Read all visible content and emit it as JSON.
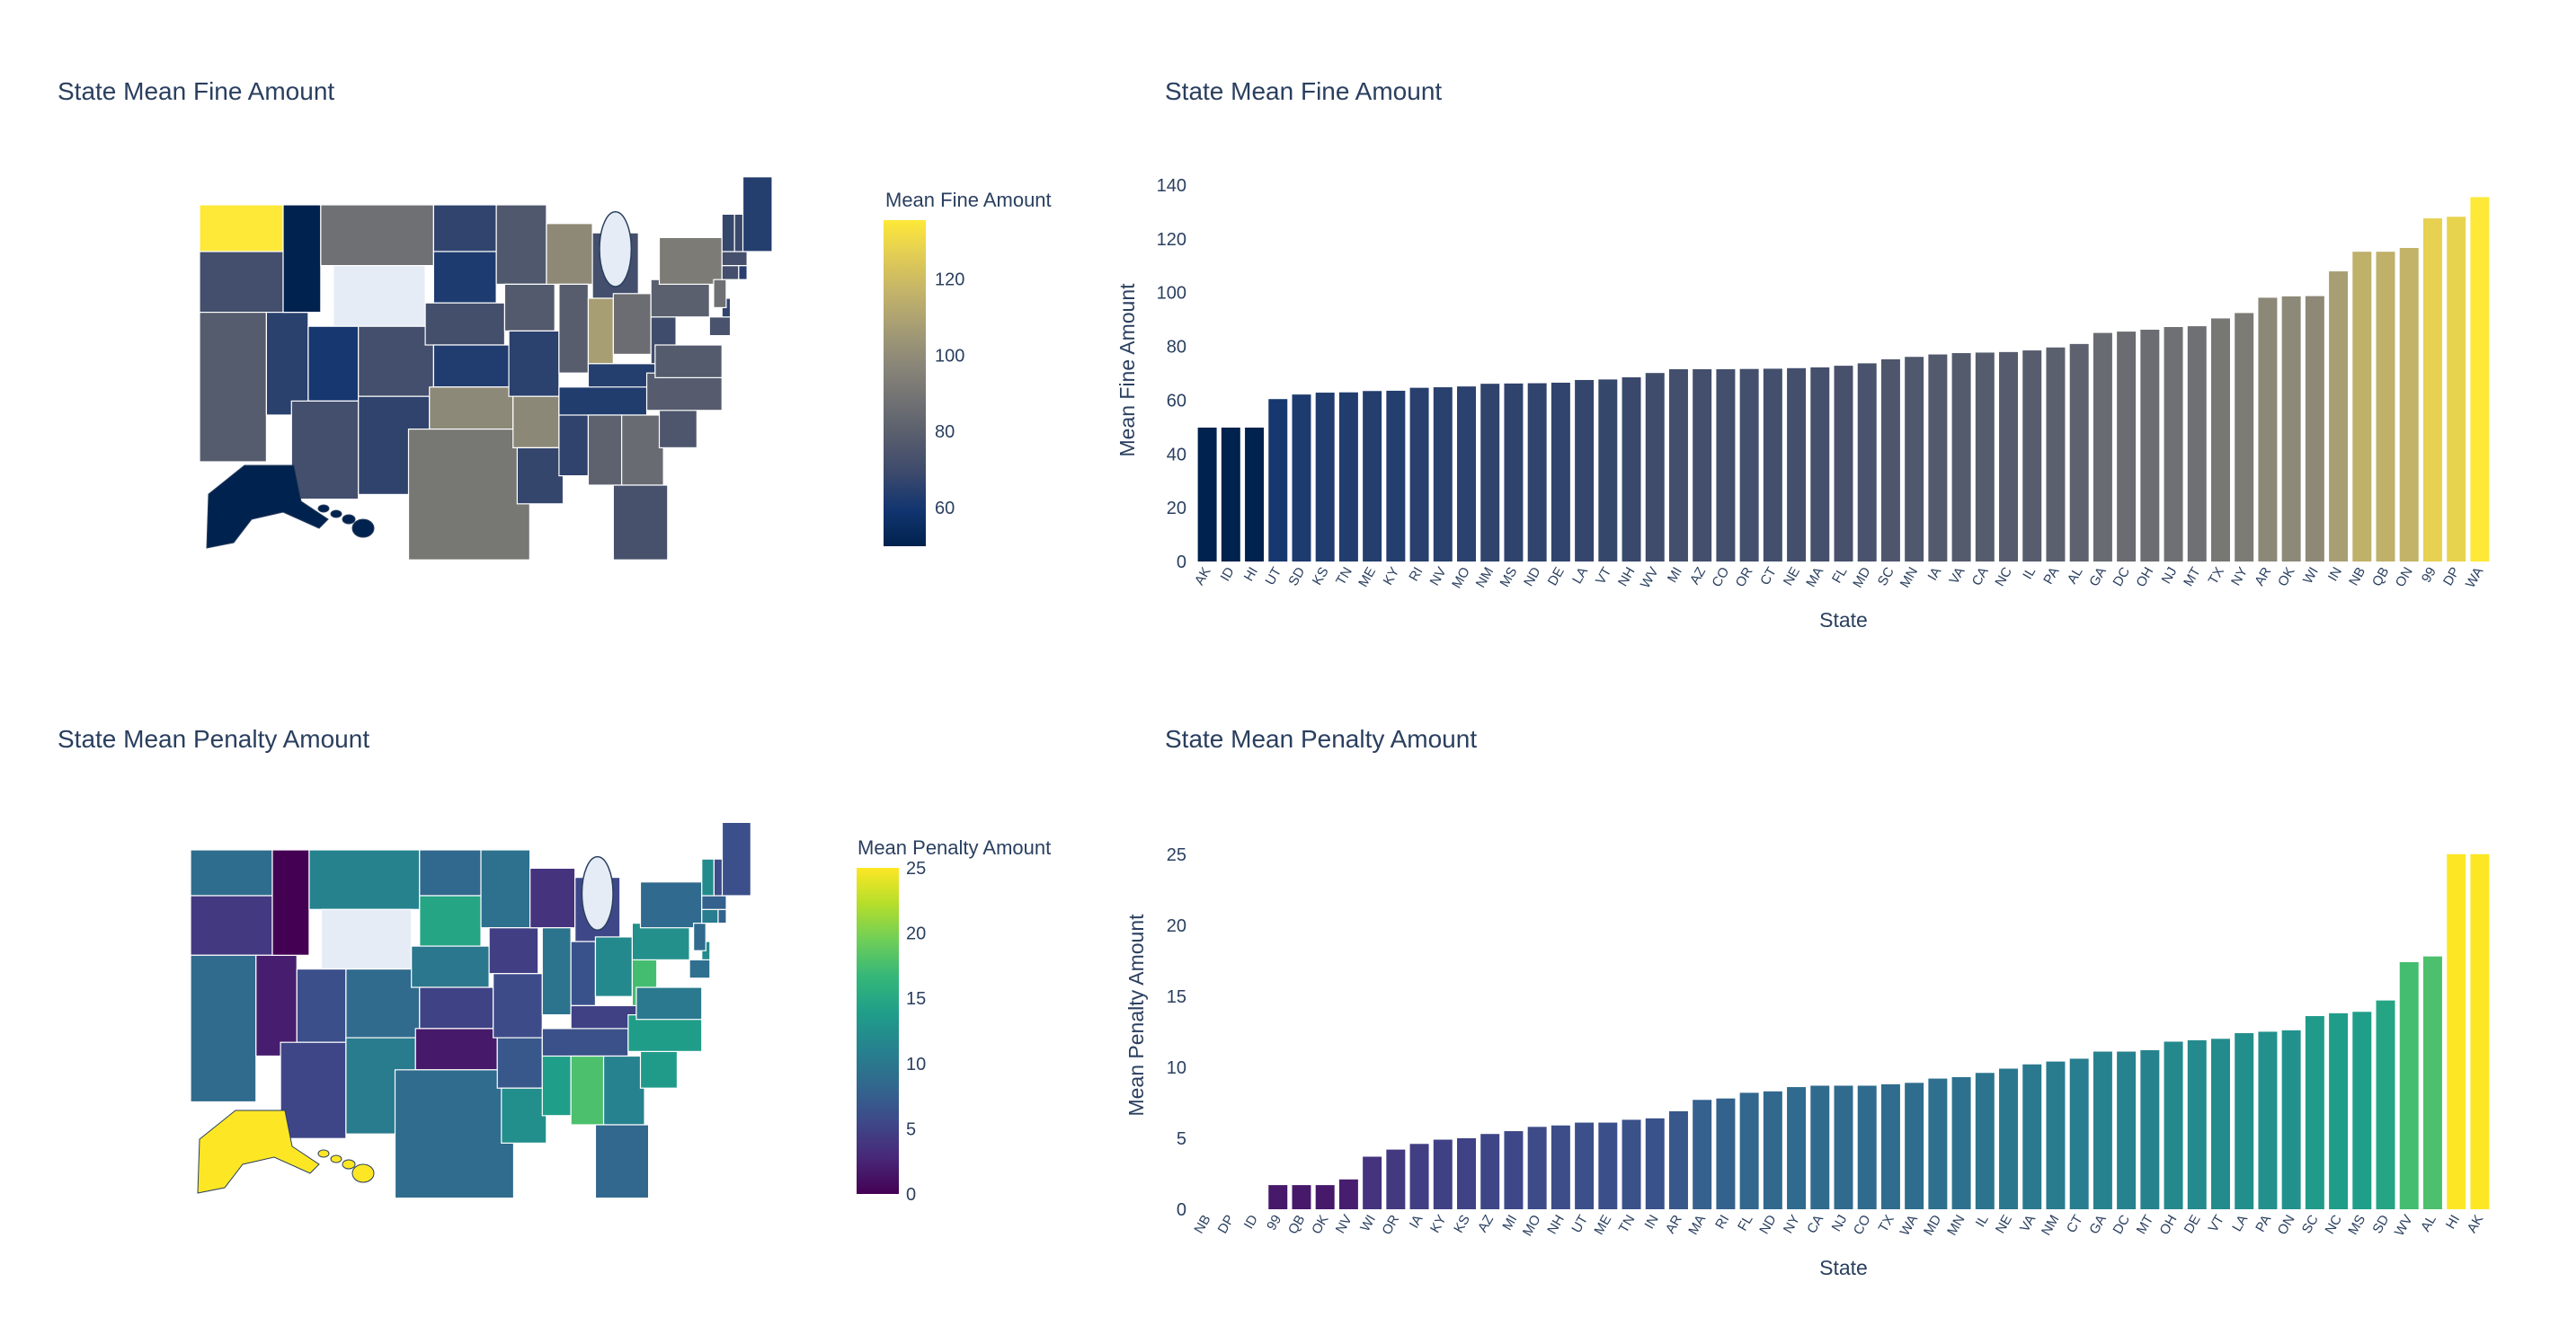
{
  "colors": {
    "cividis": [
      "#00224e",
      "#123570",
      "#3b496c",
      "#575d6d",
      "#707173",
      "#8a8678",
      "#a59c74",
      "#c3b369",
      "#e1cc55",
      "#fee838"
    ],
    "viridis": [
      "#440154",
      "#482878",
      "#3e4989",
      "#31688e",
      "#26828e",
      "#1f9e89",
      "#35b779",
      "#6ece58",
      "#b5de2b",
      "#fde725"
    ],
    "missing": "#e5ecf6",
    "grid": "#ffffff",
    "text": "#2a3f5f",
    "great_lakes": "#e5ecf6"
  },
  "chart_data": [
    {
      "id": "fine-map",
      "type": "choropleth",
      "title": "State Mean Fine Amount",
      "colorbar_title": "Mean Fine Amount",
      "colorscale": "cividis",
      "range": [
        49.8,
        135.5
      ],
      "colorbar_ticks": [
        60,
        80,
        100,
        120
      ],
      "missing_states": [
        "WY"
      ],
      "values_from": "fine-bar"
    },
    {
      "id": "fine-bar",
      "type": "bar",
      "title": "State Mean Fine Amount",
      "xlabel": "State",
      "ylabel": "Mean Fine Amount",
      "ylim": [
        0,
        142
      ],
      "yticks": [
        0,
        20,
        40,
        60,
        80,
        100,
        120,
        140
      ],
      "colorscale": "cividis",
      "categories": [
        "AK",
        "ID",
        "HI",
        "UT",
        "SD",
        "KS",
        "TN",
        "ME",
        "KY",
        "RI",
        "NV",
        "MO",
        "NM",
        "MS",
        "ND",
        "DE",
        "LA",
        "VT",
        "NH",
        "WV",
        "MI",
        "AZ",
        "CO",
        "OR",
        "CT",
        "NE",
        "MA",
        "FL",
        "MD",
        "SC",
        "MN",
        "IA",
        "VA",
        "CA",
        "NC",
        "IL",
        "PA",
        "AL",
        "GA",
        "DC",
        "OH",
        "NJ",
        "MT",
        "TX",
        "NY",
        "AR",
        "OK",
        "WI",
        "IN",
        "NB",
        "QB",
        "ON",
        "99",
        "DP",
        "WA"
      ],
      "values": [
        49.8,
        49.8,
        49.8,
        60.4,
        62.1,
        62.8,
        62.9,
        63.4,
        63.5,
        64.6,
        64.8,
        65.1,
        66.1,
        66.2,
        66.3,
        66.5,
        67.5,
        67.7,
        68.5,
        70.1,
        71.5,
        71.5,
        71.5,
        71.6,
        71.7,
        71.9,
        72.2,
        72.8,
        73.7,
        75.2,
        76.1,
        77.0,
        77.5,
        77.7,
        77.9,
        78.5,
        79.6,
        80.9,
        85.0,
        85.5,
        86.2,
        87.2,
        87.5,
        90.4,
        92.4,
        98.1,
        98.6,
        98.7,
        107.9,
        115.2,
        115.2,
        116.6,
        127.6,
        128.2,
        135.5
      ]
    },
    {
      "id": "penalty-map",
      "type": "choropleth",
      "title": "State Mean Penalty Amount",
      "colorbar_title": "Mean Penalty Amount",
      "colorscale": "viridis",
      "range": [
        0,
        25
      ],
      "colorbar_ticks": [
        0,
        5,
        10,
        15,
        20,
        25
      ],
      "missing_states": [
        "WY"
      ],
      "values_from": "penalty-bar"
    },
    {
      "id": "penalty-bar",
      "type": "bar",
      "title": "State Mean Penalty Amount",
      "xlabel": "State",
      "ylabel": "Mean Penalty Amount",
      "ylim": [
        0,
        26
      ],
      "yticks": [
        0,
        5,
        10,
        15,
        20,
        25
      ],
      "colorscale": "viridis",
      "categories": [
        "NB",
        "DP",
        "ID",
        "99",
        "QB",
        "OK",
        "NV",
        "WI",
        "OR",
        "IA",
        "KY",
        "KS",
        "AZ",
        "MI",
        "MO",
        "NH",
        "UT",
        "ME",
        "TN",
        "IN",
        "AR",
        "MA",
        "RI",
        "FL",
        "ND",
        "NY",
        "CA",
        "NJ",
        "CO",
        "TX",
        "WA",
        "MD",
        "MN",
        "IL",
        "NE",
        "VA",
        "NM",
        "CT",
        "GA",
        "DC",
        "MT",
        "OH",
        "DE",
        "VT",
        "LA",
        "PA",
        "ON",
        "SC",
        "NC",
        "MS",
        "SD",
        "WV",
        "AL",
        "HI",
        "AK"
      ],
      "values": [
        0,
        0,
        0,
        1.7,
        1.7,
        1.7,
        2.1,
        3.7,
        4.2,
        4.6,
        4.9,
        5.0,
        5.3,
        5.5,
        5.8,
        5.9,
        6.1,
        6.1,
        6.3,
        6.4,
        6.9,
        7.7,
        7.8,
        8.2,
        8.3,
        8.6,
        8.7,
        8.7,
        8.7,
        8.8,
        8.9,
        9.2,
        9.3,
        9.6,
        9.9,
        10.2,
        10.4,
        10.6,
        11.1,
        11.1,
        11.2,
        11.8,
        11.9,
        12.0,
        12.4,
        12.5,
        12.6,
        13.6,
        13.8,
        13.9,
        14.7,
        17.4,
        17.8,
        25.0,
        25.0
      ]
    }
  ]
}
